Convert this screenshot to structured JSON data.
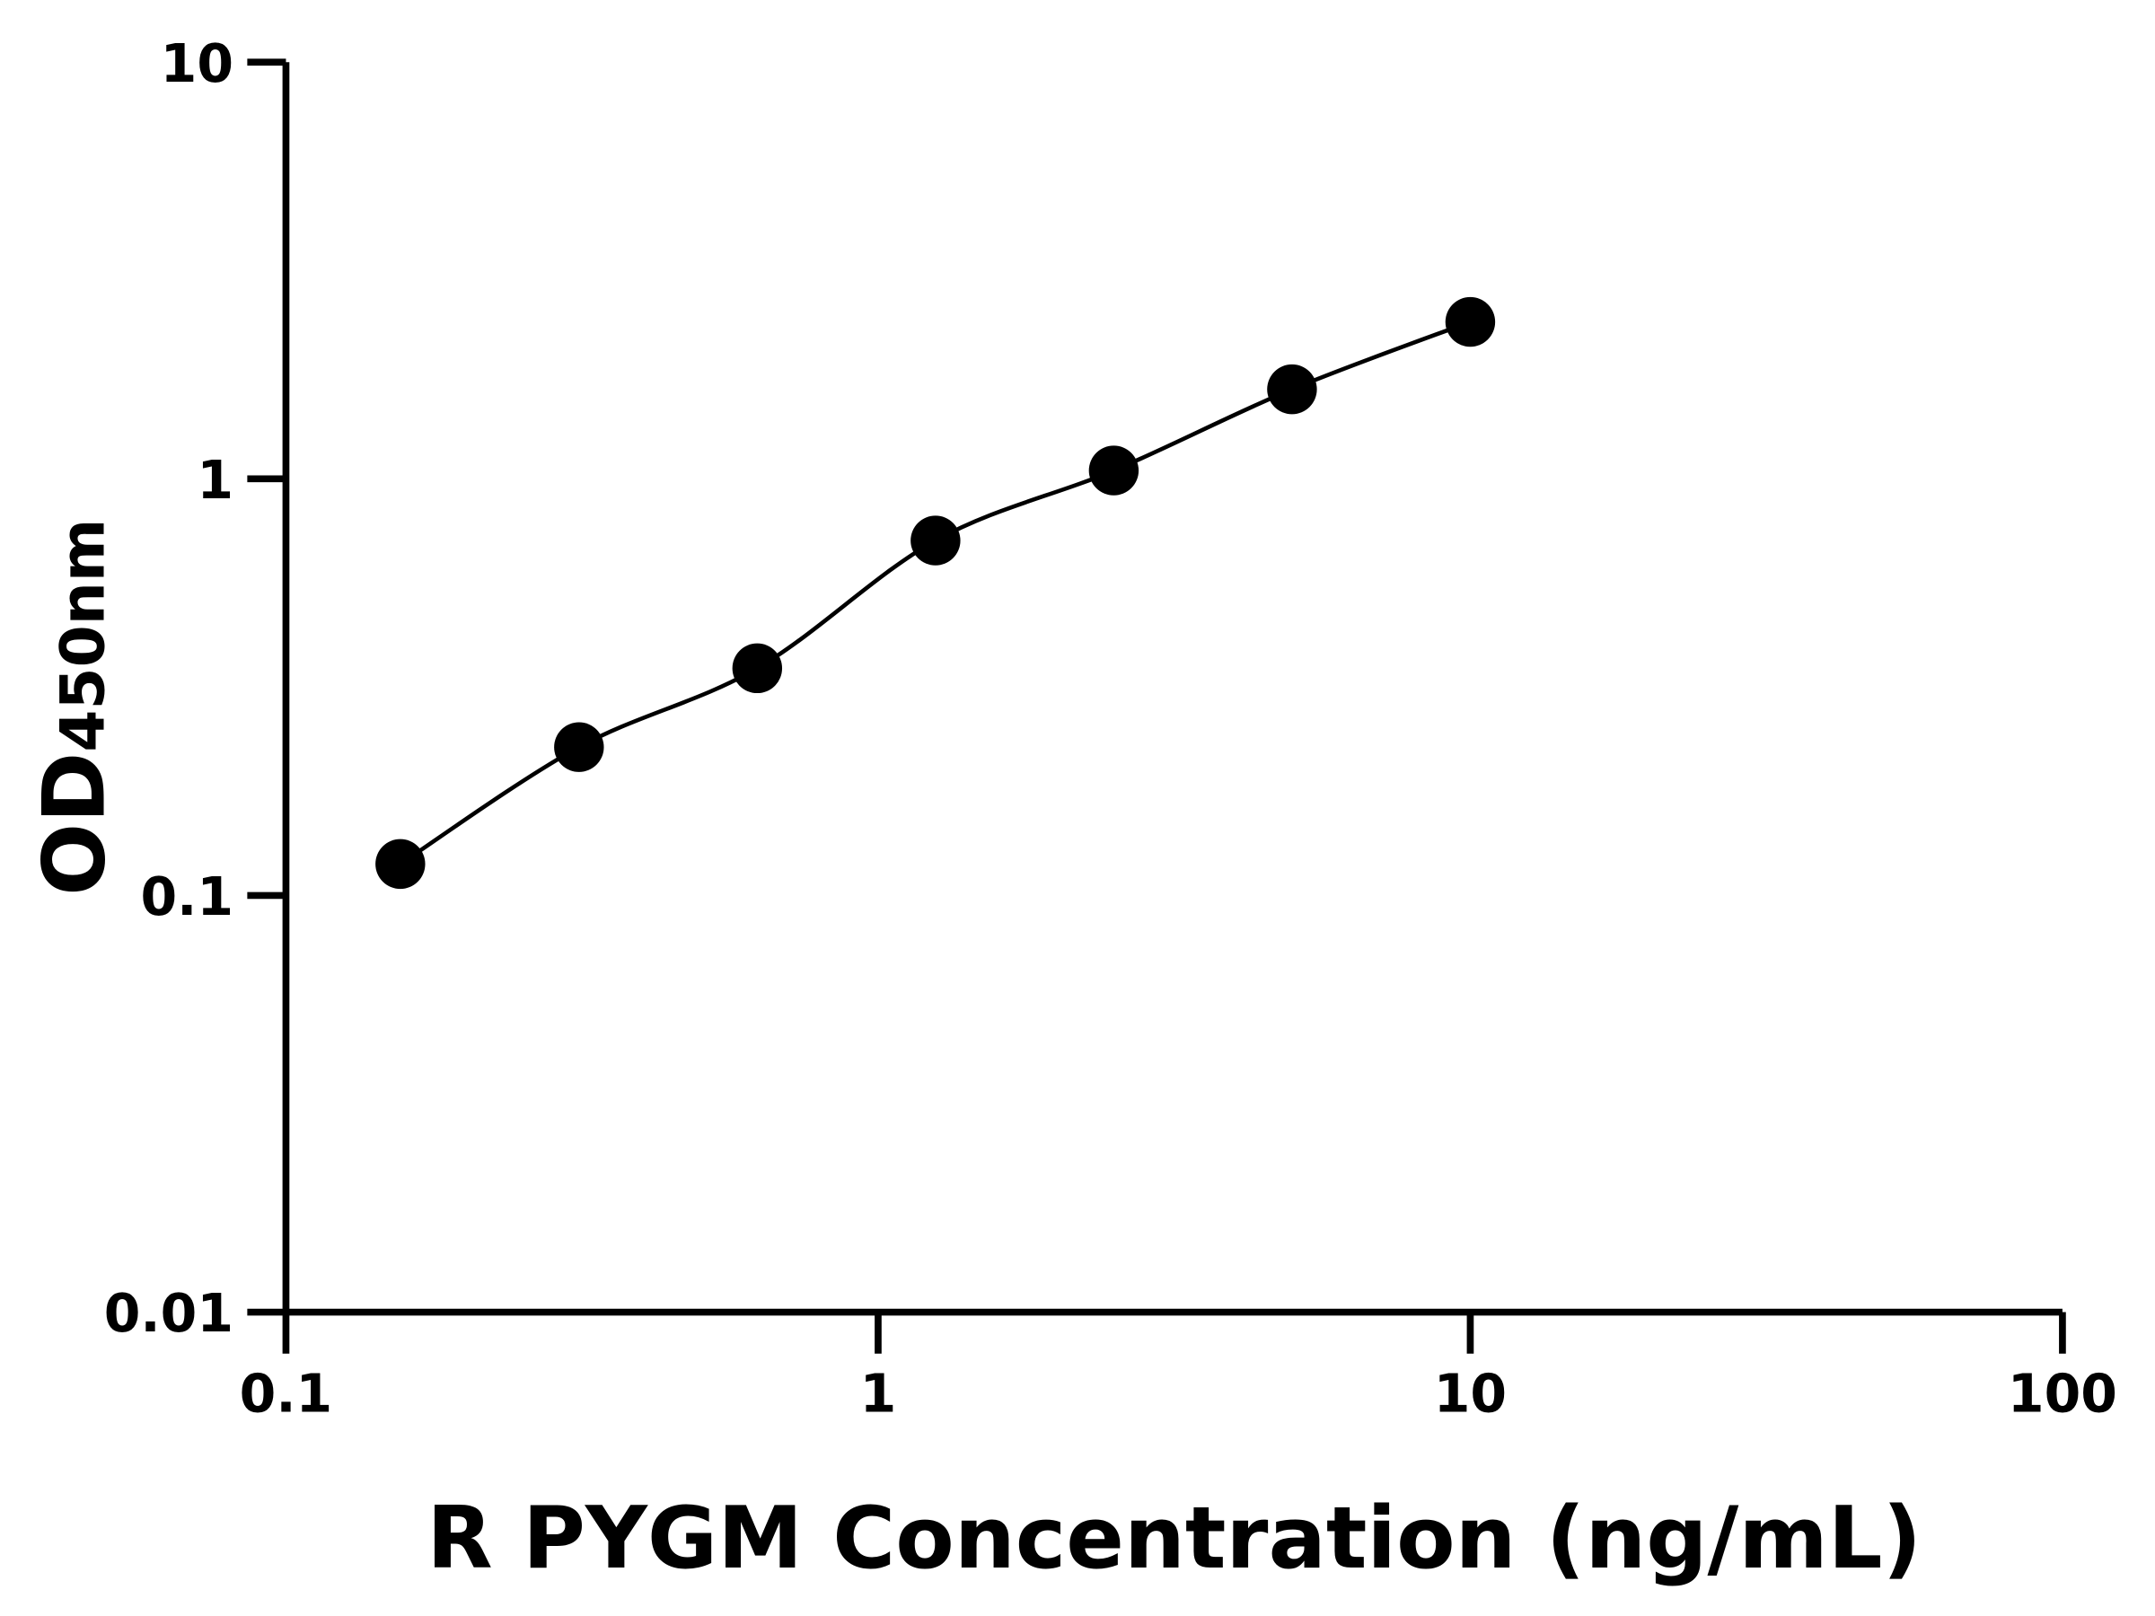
{
  "chart_data": {
    "type": "scatter",
    "title": "",
    "xlabel": "R PYGM Concentration (ng/mL)",
    "ylabel_main": "OD",
    "ylabel_sub": "450nm",
    "x_scale": "log",
    "y_scale": "log",
    "xlim": [
      0.1,
      100
    ],
    "ylim": [
      0.01,
      10
    ],
    "x_ticks": [
      0.1,
      1,
      10,
      100
    ],
    "x_tick_labels": [
      "0.1",
      "1",
      "10",
      "100"
    ],
    "y_ticks": [
      0.01,
      0.1,
      1,
      10
    ],
    "y_tick_labels": [
      "0.01",
      "0.1",
      "1",
      "10"
    ],
    "grid": false,
    "fit_line": true,
    "series": [
      {
        "x": [
          0.156,
          0.3125,
          0.625,
          1.25,
          2.5,
          5,
          10
        ],
        "y": [
          0.119,
          0.227,
          0.351,
          0.711,
          1.047,
          1.64,
          2.38
        ]
      }
    ],
    "colors": {
      "points": "#000000",
      "line": "#000000"
    }
  }
}
